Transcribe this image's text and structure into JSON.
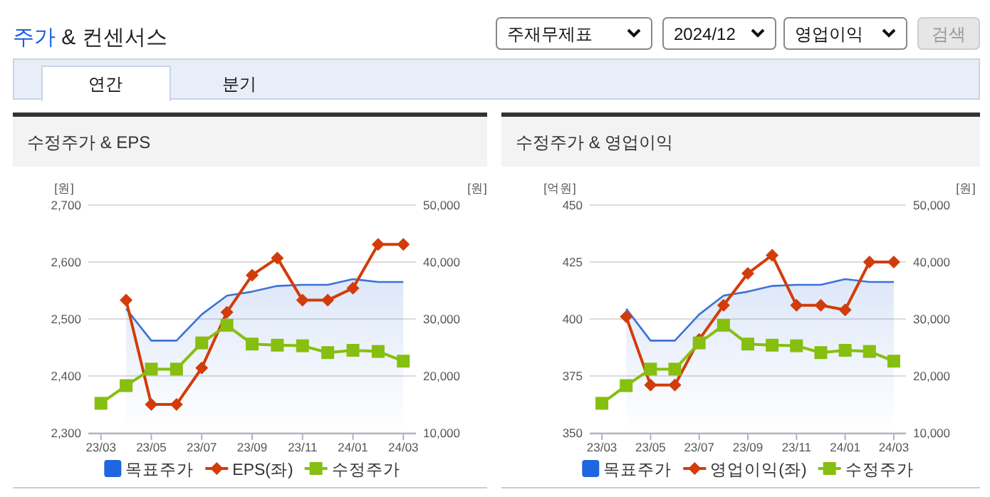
{
  "chart_data": [
    {
      "type": "other",
      "title": "주가 & 컨센서스",
      "annotations": [
        "주재무제표",
        "2024/12",
        "영업이익",
        "검색",
        "연간",
        "분기"
      ]
    },
    {
      "type": "line",
      "title": "수정주가 & EPS",
      "ylabel": "[원]",
      "y2label": "[원]",
      "categories": [
        "23/03",
        null,
        "23/05",
        null,
        "23/07",
        null,
        "23/09",
        null,
        "23/11",
        null,
        "24/01",
        null,
        "24/03"
      ],
      "ylim": [
        2300,
        2700
      ],
      "yticks": [
        {
          "value": 2300,
          "label": "2,300"
        },
        {
          "value": 2400,
          "label": "2,400"
        },
        {
          "value": 2500,
          "label": "2,500"
        },
        {
          "value": 2600,
          "label": "2,600"
        },
        {
          "value": 2700,
          "label": "2,700"
        }
      ],
      "y2lim": [
        10000,
        50000
      ],
      "y2ticks": [
        {
          "value": 10000,
          "label": "10,000"
        },
        {
          "value": 20000,
          "label": "20,000"
        },
        {
          "value": 30000,
          "label": "30,000"
        },
        {
          "value": 40000,
          "label": "40,000"
        },
        {
          "value": 50000,
          "label": "50,000"
        }
      ],
      "grid": "y",
      "legend": "bottom",
      "series": [
        {
          "name": "목표주가",
          "type": "area",
          "axis": "y2",
          "color": "#3b73d9",
          "values": [
            null,
            31800,
            26200,
            26200,
            30800,
            34100,
            34800,
            35800,
            36000,
            36000,
            37000,
            36500,
            36500
          ]
        },
        {
          "name": "EPS(좌)",
          "color": "#d23c0a",
          "marker": "diamond",
          "values": [
            null,
            2533,
            2350,
            2350,
            2414,
            2512,
            2577,
            2607,
            2533,
            2533,
            2554,
            2631,
            2631
          ]
        },
        {
          "name": "수정주가",
          "axis": "y2",
          "color": "#86bf0f",
          "marker": "square",
          "values": [
            15200,
            18300,
            21200,
            21200,
            25800,
            28900,
            25600,
            25400,
            25300,
            24100,
            24500,
            24300,
            22600
          ]
        }
      ]
    },
    {
      "type": "line",
      "title": "수정주가 & 영업이익",
      "ylabel": "[억원]",
      "y2label": "[원]",
      "categories": [
        "23/03",
        null,
        "23/05",
        null,
        "23/07",
        null,
        "23/09",
        null,
        "23/11",
        null,
        "24/01",
        null,
        "24/03"
      ],
      "ylim": [
        350,
        450
      ],
      "yticks": [
        350,
        375,
        400,
        425,
        450
      ],
      "y2lim": [
        10000,
        50000
      ],
      "y2ticks": [
        {
          "value": 10000,
          "label": "10,000"
        },
        {
          "value": 20000,
          "label": "20,000"
        },
        {
          "value": 30000,
          "label": "30,000"
        },
        {
          "value": 40000,
          "label": "40,000"
        },
        {
          "value": 50000,
          "label": "50,000"
        }
      ],
      "grid": "y",
      "legend": "bottom",
      "series": [
        {
          "name": "목표주가",
          "type": "area",
          "axis": "y2",
          "color": "#3b73d9",
          "values": [
            null,
            31800,
            26200,
            26200,
            30800,
            34100,
            34800,
            35800,
            36000,
            36000,
            37000,
            36500,
            36500
          ]
        },
        {
          "name": "영업이익(좌)",
          "color": "#d23c0a",
          "marker": "diamond",
          "values": [
            null,
            401,
            371,
            371,
            391,
            406,
            420,
            428,
            406,
            406,
            404,
            425,
            425
          ]
        },
        {
          "name": "수정주가",
          "axis": "y2",
          "color": "#86bf0f",
          "marker": "square",
          "values": [
            15200,
            18300,
            21200,
            21200,
            25800,
            28900,
            25600,
            25400,
            25300,
            24100,
            24500,
            24300,
            22600
          ]
        }
      ]
    }
  ]
}
